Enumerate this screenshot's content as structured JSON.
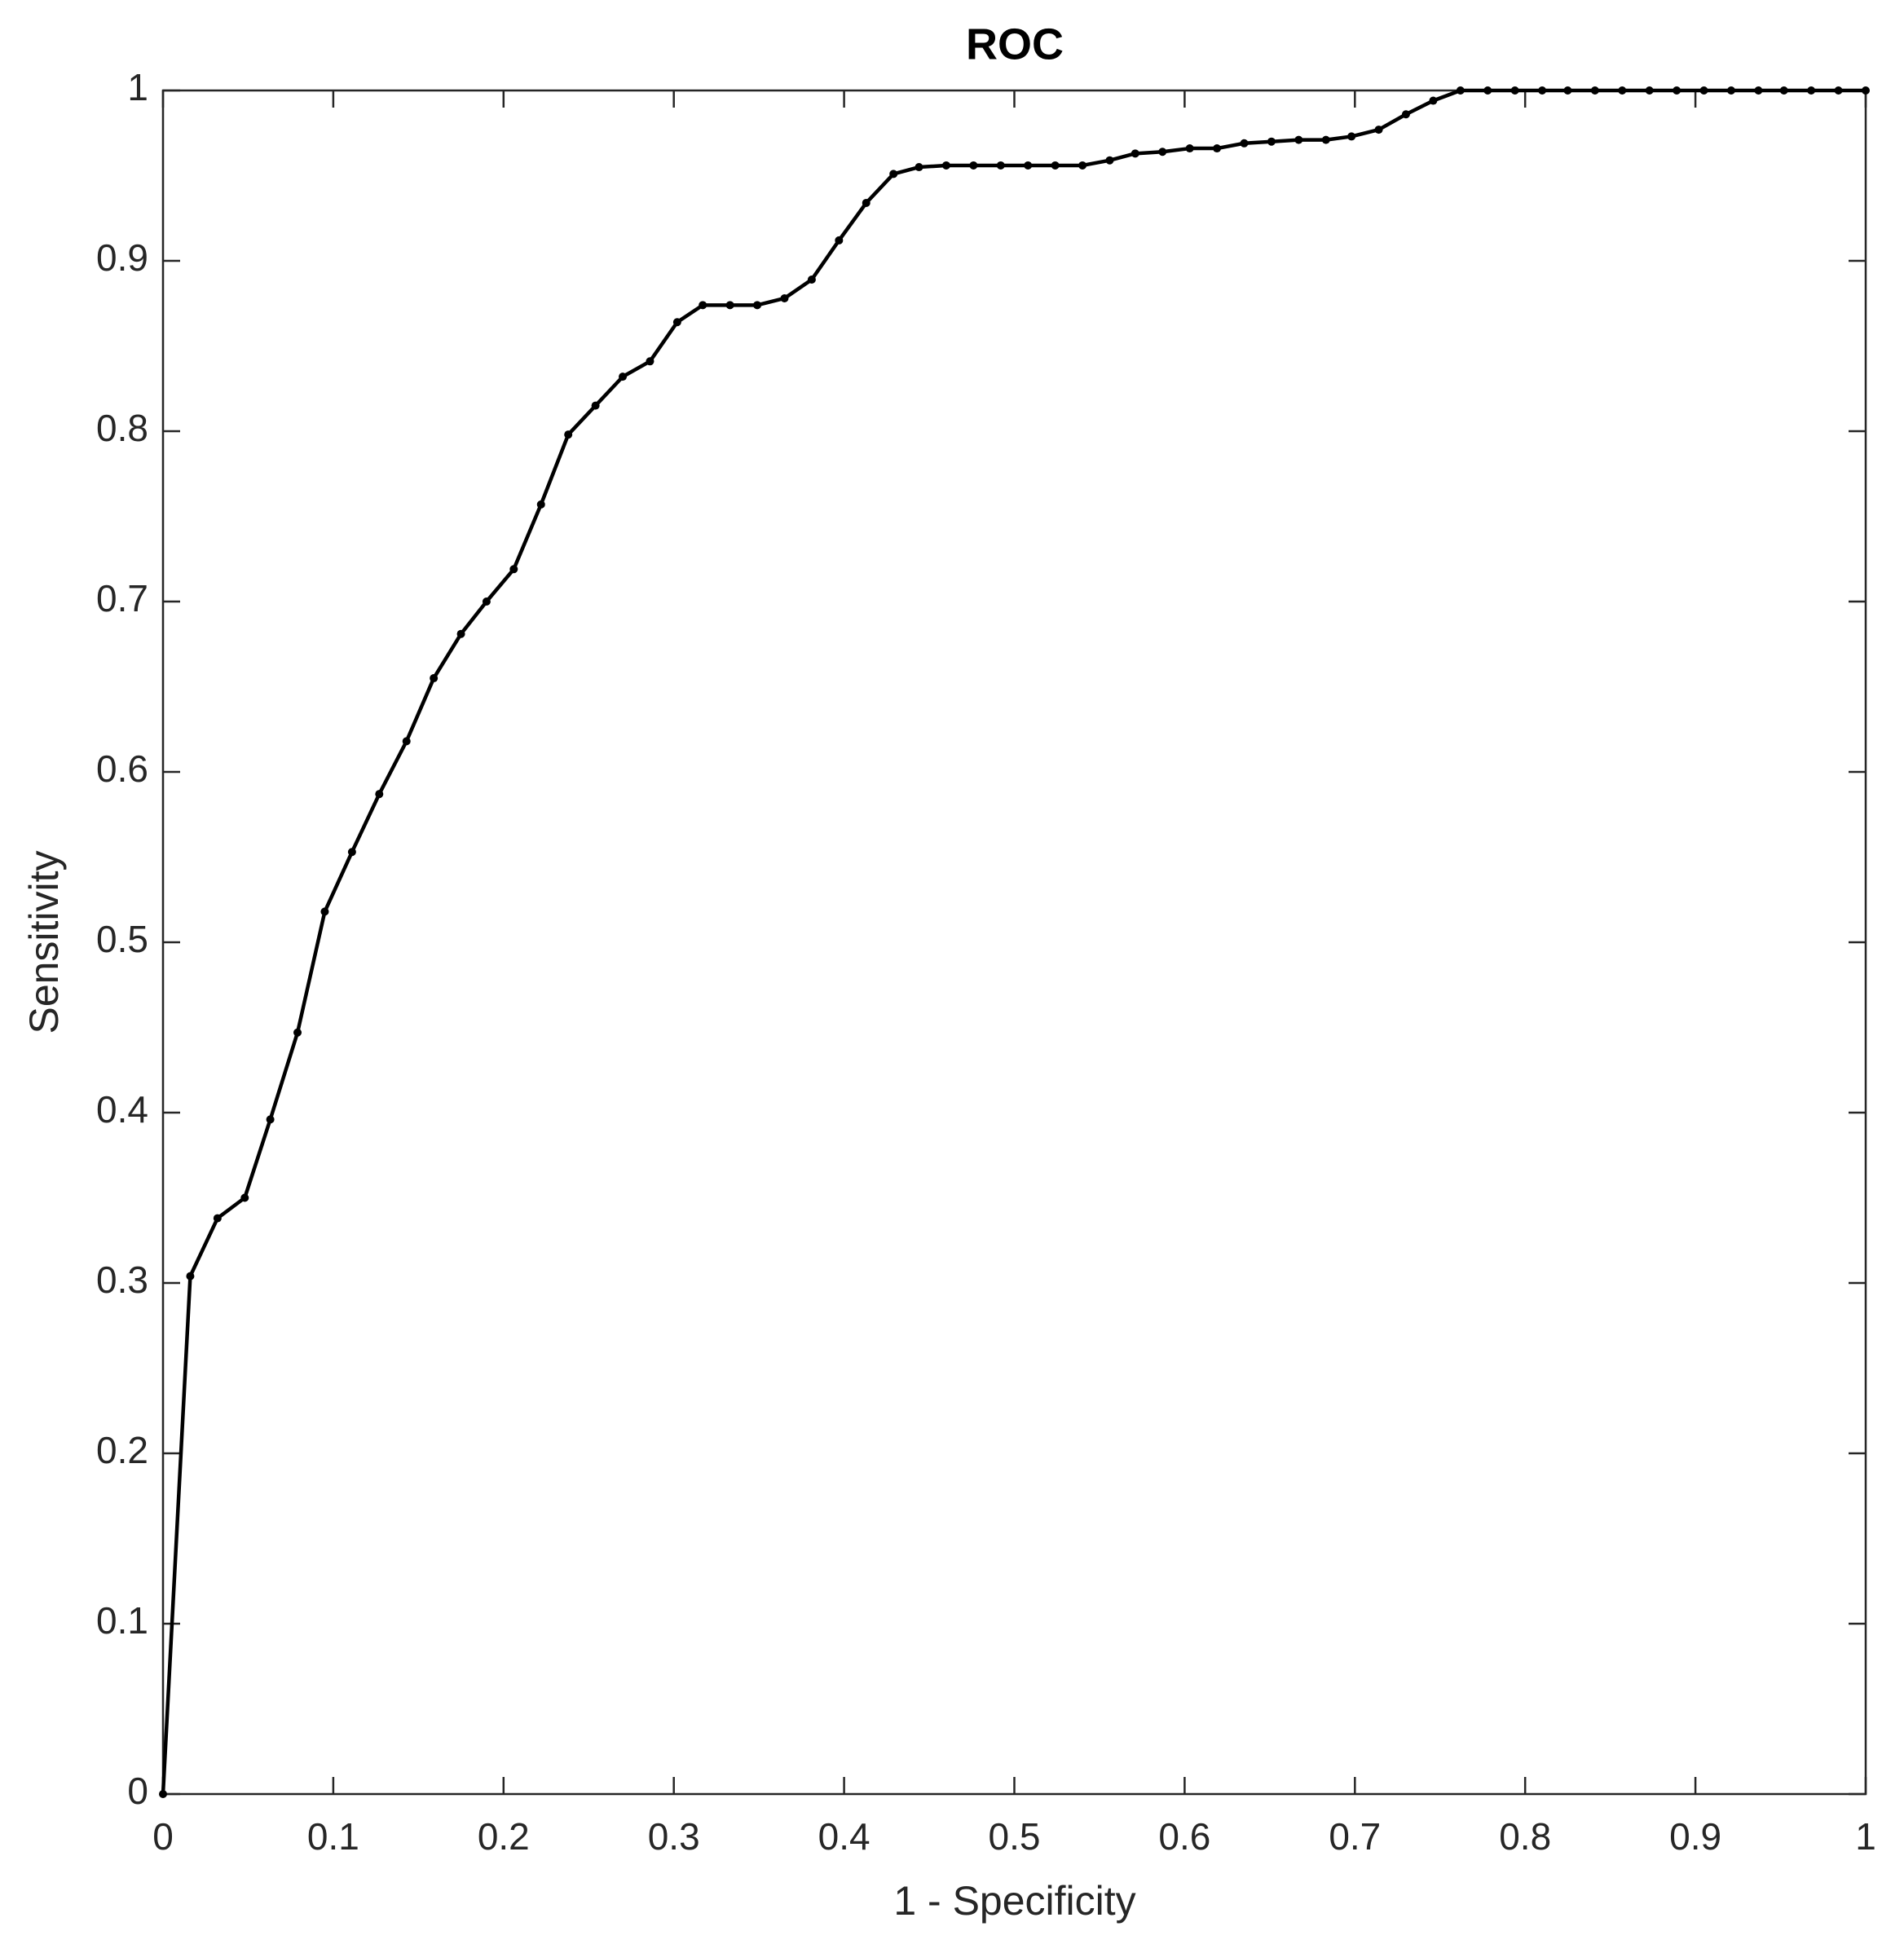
{
  "chart_data": {
    "type": "line",
    "title": "ROC",
    "xlabel": "1 - Specificity",
    "ylabel": "Sensitivity",
    "x": [
      0,
      0.016,
      0.032,
      0.048,
      0.063,
      0.079,
      0.095,
      0.111,
      0.127,
      0.143,
      0.159,
      0.175,
      0.19,
      0.206,
      0.222,
      0.238,
      0.254,
      0.27,
      0.286,
      0.302,
      0.317,
      0.333,
      0.349,
      0.365,
      0.381,
      0.397,
      0.413,
      0.429,
      0.444,
      0.46,
      0.476,
      0.492,
      0.508,
      0.524,
      0.54,
      0.556,
      0.571,
      0.587,
      0.603,
      0.619,
      0.635,
      0.651,
      0.667,
      0.683,
      0.698,
      0.714,
      0.73,
      0.746,
      0.762,
      0.778,
      0.794,
      0.81,
      0.825,
      0.841,
      0.857,
      0.873,
      0.889,
      0.905,
      0.921,
      0.937,
      0.952,
      0.968,
      0.984,
      1
    ],
    "values": [
      0,
      0.304,
      0.338,
      0.35,
      0.396,
      0.447,
      0.518,
      0.553,
      0.587,
      0.618,
      0.655,
      0.681,
      0.7,
      0.719,
      0.757,
      0.798,
      0.815,
      0.832,
      0.841,
      0.864,
      0.874,
      0.874,
      0.874,
      0.878,
      0.889,
      0.912,
      0.934,
      0.951,
      0.955,
      0.956,
      0.956,
      0.956,
      0.956,
      0.956,
      0.956,
      0.959,
      0.963,
      0.964,
      0.966,
      0.966,
      0.969,
      0.97,
      0.971,
      0.971,
      0.973,
      0.977,
      0.986,
      0.994,
      1,
      1,
      1,
      1,
      1,
      1,
      1,
      1,
      1,
      1,
      1,
      1,
      1,
      1,
      1,
      1
    ],
    "color": "#000000",
    "xlim": [
      0,
      1
    ],
    "ylim": [
      0,
      1
    ],
    "xticks": [
      0,
      0.1,
      0.2,
      0.3,
      0.4,
      0.5,
      0.6,
      0.7,
      0.8,
      0.9,
      1
    ],
    "yticks": [
      0,
      0.1,
      0.2,
      0.3,
      0.4,
      0.5,
      0.6,
      0.7,
      0.8,
      0.9,
      1
    ],
    "grid": false
  }
}
